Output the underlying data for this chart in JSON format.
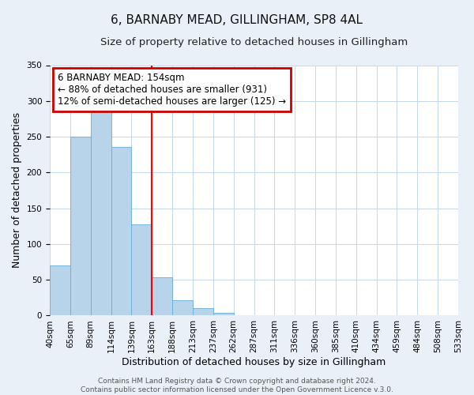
{
  "title": "6, BARNABY MEAD, GILLINGHAM, SP8 4AL",
  "subtitle": "Size of property relative to detached houses in Gillingham",
  "xlabel": "Distribution of detached houses by size in Gillingham",
  "ylabel": "Number of detached properties",
  "bin_labels": [
    "40sqm",
    "65sqm",
    "89sqm",
    "114sqm",
    "139sqm",
    "163sqm",
    "188sqm",
    "213sqm",
    "237sqm",
    "262sqm",
    "287sqm",
    "311sqm",
    "336sqm",
    "360sqm",
    "385sqm",
    "410sqm",
    "434sqm",
    "459sqm",
    "484sqm",
    "508sqm",
    "533sqm"
  ],
  "bar_values": [
    70,
    250,
    287,
    236,
    128,
    54,
    22,
    10,
    4,
    1,
    0,
    0,
    0,
    0,
    0,
    0,
    0,
    0,
    0,
    0
  ],
  "bar_color": "#b8d4eb",
  "bar_edge_color": "#6aaed6",
  "red_line_x": 5,
  "ylim": [
    0,
    350
  ],
  "yticks": [
    0,
    50,
    100,
    150,
    200,
    250,
    300,
    350
  ],
  "annotation_line1": "6 BARNABY MEAD: 154sqm",
  "annotation_line2": "← 88% of detached houses are smaller (931)",
  "annotation_line3": "12% of semi-detached houses are larger (125) →",
  "annotation_box_color": "#ffffff",
  "annotation_box_edge_color": "#cc0000",
  "footer_line1": "Contains HM Land Registry data © Crown copyright and database right 2024.",
  "footer_line2": "Contains public sector information licensed under the Open Government Licence v.3.0.",
  "background_color": "#eaf0f8",
  "plot_background_color": "#ffffff",
  "grid_color": "#c5d8ec",
  "title_fontsize": 11,
  "subtitle_fontsize": 9.5,
  "axis_label_fontsize": 9,
  "tick_fontsize": 7.5,
  "footer_fontsize": 6.5,
  "annotation_fontsize": 8.5
}
